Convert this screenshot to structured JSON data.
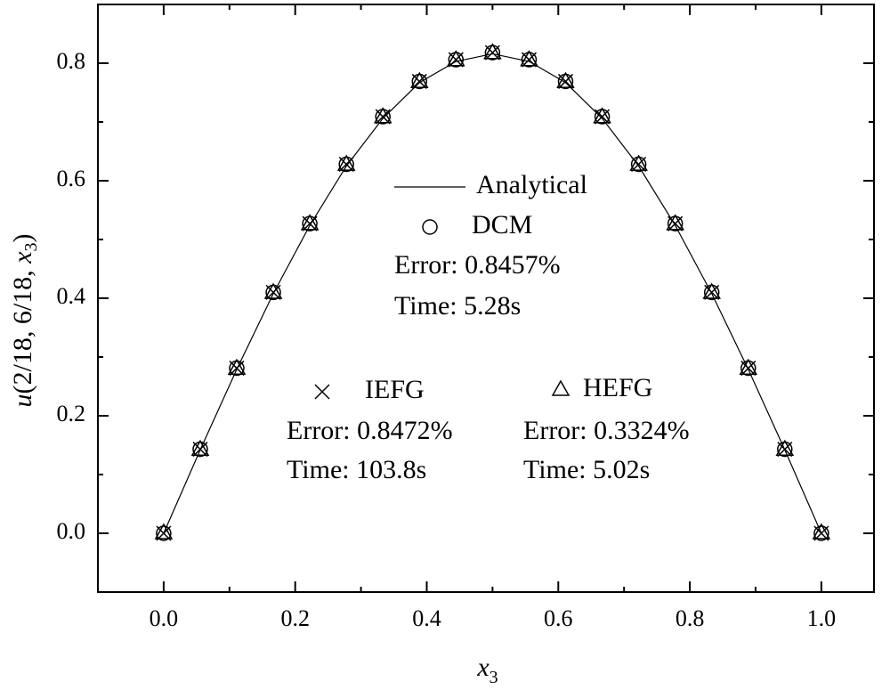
{
  "chart_data": {
    "type": "line",
    "xlabel_parts": [
      "x",
      "3"
    ],
    "ylabel_parts": [
      "u",
      "(2/18, 6/18, ",
      "x",
      "3",
      ")"
    ],
    "x": [
      0,
      0.0556,
      0.1111,
      0.1667,
      0.2222,
      0.2778,
      0.3333,
      0.3889,
      0.4444,
      0.5,
      0.5556,
      0.6111,
      0.6667,
      0.7222,
      0.7778,
      0.8333,
      0.8889,
      0.9444,
      1
    ],
    "series": [
      {
        "name": "Analytical",
        "marker": "line",
        "color": "#000000",
        "values": [
          0,
          0.142,
          0.279,
          0.408,
          0.524,
          0.625,
          0.706,
          0.767,
          0.803,
          0.816,
          0.803,
          0.767,
          0.706,
          0.625,
          0.524,
          0.408,
          0.279,
          0.142,
          0
        ]
      },
      {
        "name": "DCM",
        "marker": "circle",
        "color": "#000000",
        "values": [
          0,
          0.143,
          0.281,
          0.41,
          0.527,
          0.628,
          0.709,
          0.769,
          0.806,
          0.818,
          0.806,
          0.769,
          0.709,
          0.628,
          0.527,
          0.41,
          0.281,
          0.143,
          0
        ],
        "error": "Error: 0.8457%",
        "time": "Time: 5.28s"
      },
      {
        "name": "IEFG",
        "marker": "cross",
        "color": "#000000",
        "values": [
          0,
          0.143,
          0.281,
          0.41,
          0.527,
          0.628,
          0.709,
          0.769,
          0.806,
          0.818,
          0.806,
          0.769,
          0.709,
          0.628,
          0.527,
          0.41,
          0.281,
          0.143,
          0
        ],
        "error": "Error: 0.8472%",
        "time": "Time: 103.8s"
      },
      {
        "name": "HEFG",
        "marker": "triangle",
        "color": "#000000",
        "values": [
          0,
          0.142,
          0.28,
          0.409,
          0.526,
          0.627,
          0.708,
          0.768,
          0.805,
          0.817,
          0.805,
          0.768,
          0.708,
          0.627,
          0.526,
          0.409,
          0.28,
          0.142,
          0
        ],
        "error": "Error: 0.3324%",
        "time": "Time: 5.02s"
      }
    ],
    "xlim": [
      -0.1,
      1.08
    ],
    "ylim": [
      -0.1,
      0.9
    ],
    "xticks": [
      {
        "value": 0,
        "label": "0.0"
      },
      0.2,
      0.4,
      0.6,
      0.8,
      {
        "value": 1,
        "label": "1.0"
      }
    ],
    "yticks": [
      {
        "value": 0,
        "label": "0.0"
      },
      0.2,
      0.4,
      0.6,
      0.8
    ],
    "xticks_minor": [
      -0.1,
      0.1,
      0.3,
      0.5,
      0.7,
      0.9
    ],
    "yticks_minor": [
      -0.1,
      0.1,
      0.3,
      0.5,
      0.7,
      0.9
    ]
  }
}
